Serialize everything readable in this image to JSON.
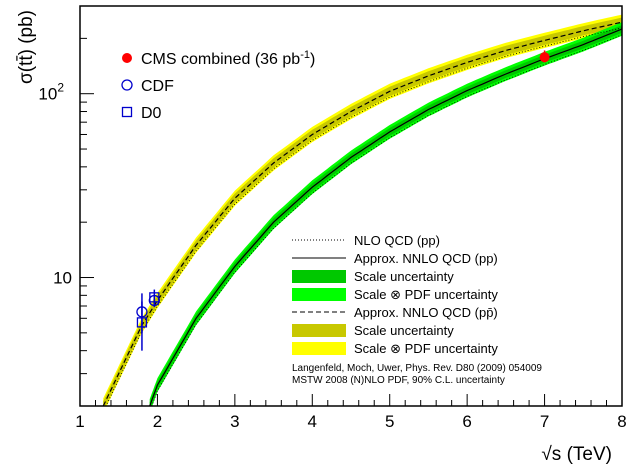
{
  "chart_data": {
    "type": "line",
    "x_label_prefix": "√s",
    "x_label_suffix": " (TeV)",
    "y_label": "σ(tt̄) (pb)",
    "xlim": [
      1,
      8
    ],
    "ylim": [
      2,
      300
    ],
    "y_scale": "log",
    "x_ticks": [
      1,
      2,
      3,
      4,
      5,
      6,
      7,
      8
    ],
    "y_ticks": [
      {
        "value": 10,
        "label": "10"
      },
      {
        "value": 100,
        "label": "10",
        "exponent": "2"
      }
    ],
    "series": [
      {
        "key": "pp",
        "x": [
          1.3,
          1.5,
          1.8,
          2.0,
          2.5,
          3.0,
          3.5,
          4.0,
          4.5,
          5.0,
          5.5,
          6.0,
          6.5,
          7.0,
          7.5,
          8.0
        ],
        "y": [
          2.0,
          3.0,
          5.5,
          7.5,
          15,
          27,
          42,
          60,
          80,
          103,
          125,
          148,
          172,
          195,
          220,
          245
        ],
        "band_scale": 0.06,
        "band_pdf": 0.1,
        "color_scale": "#c8c800",
        "color_pdf": "#ffff00",
        "line_style": "dashed"
      },
      {
        "key": "pp-lhc",
        "x": [
          1.9,
          2.0,
          2.5,
          3.0,
          3.5,
          4.0,
          4.5,
          5.0,
          5.5,
          6.0,
          6.5,
          7.0,
          7.5,
          8.0
        ],
        "y": [
          2.0,
          2.6,
          6.0,
          11.5,
          20,
          31,
          45,
          62,
          82,
          104,
          128,
          155,
          185,
          225
        ],
        "band_scale": 0.05,
        "band_pdf": 0.09,
        "color_scale": "#00c800",
        "color_pdf": "#00ff00",
        "line_style": "solid"
      }
    ],
    "measurements": [
      {
        "name": "CMS combined (36 pb",
        "superscript": "-1",
        "suffix": ")",
        "x": 7.0,
        "y": 158,
        "yerr": [
          148,
          172
        ],
        "marker": "filled-circle",
        "color": "#ff0000"
      },
      {
        "name": "CDF",
        "x": 1.8,
        "y": 6.5,
        "yerr": [
          5.0,
          8.2
        ],
        "marker": "open-circle",
        "color": "#0000cc"
      },
      {
        "name": "CDF",
        "x": 1.96,
        "y": 7.5,
        "yerr": [
          6.9,
          8.1
        ],
        "marker": "open-circle",
        "color": "#0000cc"
      },
      {
        "name": "D0",
        "x": 1.8,
        "y": 5.7,
        "yerr": [
          4.0,
          7.4
        ],
        "marker": "open-square",
        "color": "#0000cc"
      },
      {
        "name": "D0",
        "x": 1.96,
        "y": 7.8,
        "yerr": [
          7.0,
          8.6
        ],
        "marker": "open-square",
        "color": "#0000cc"
      }
    ],
    "legend_markers": [
      {
        "label": "CMS combined (36 pb",
        "sup": "-1",
        "tail": ")",
        "marker": "filled-circle",
        "color": "#ff0000"
      },
      {
        "label": "CDF",
        "marker": "open-circle",
        "color": "#0000cc"
      },
      {
        "label": "D0",
        "marker": "open-square",
        "color": "#0000cc"
      }
    ],
    "legend_lines": [
      {
        "label": "NLO QCD (pp)",
        "kind": "dotted"
      },
      {
        "label": "Approx. NNLO QCD (pp)",
        "kind": "solid"
      },
      {
        "label": "Scale uncertainty",
        "kind": "fill",
        "color": "#00c800"
      },
      {
        "label": "Scale ⊗ PDF uncertainty",
        "kind": "fill",
        "color": "#00ff00"
      },
      {
        "label": "Approx. NNLO QCD (pp̄)",
        "kind": "dashed"
      },
      {
        "label": "Scale uncertainty",
        "kind": "fill",
        "color": "#c8c800"
      },
      {
        "label": "Scale ⊗ PDF uncertainty",
        "kind": "fill",
        "color": "#ffff00"
      }
    ],
    "notes": [
      "Langenfeld, Moch, Uwer, Phys. Rev. D80 (2009) 054009",
      "MSTW 2008 (N)NLO PDF, 90% C.L. uncertainty"
    ]
  }
}
